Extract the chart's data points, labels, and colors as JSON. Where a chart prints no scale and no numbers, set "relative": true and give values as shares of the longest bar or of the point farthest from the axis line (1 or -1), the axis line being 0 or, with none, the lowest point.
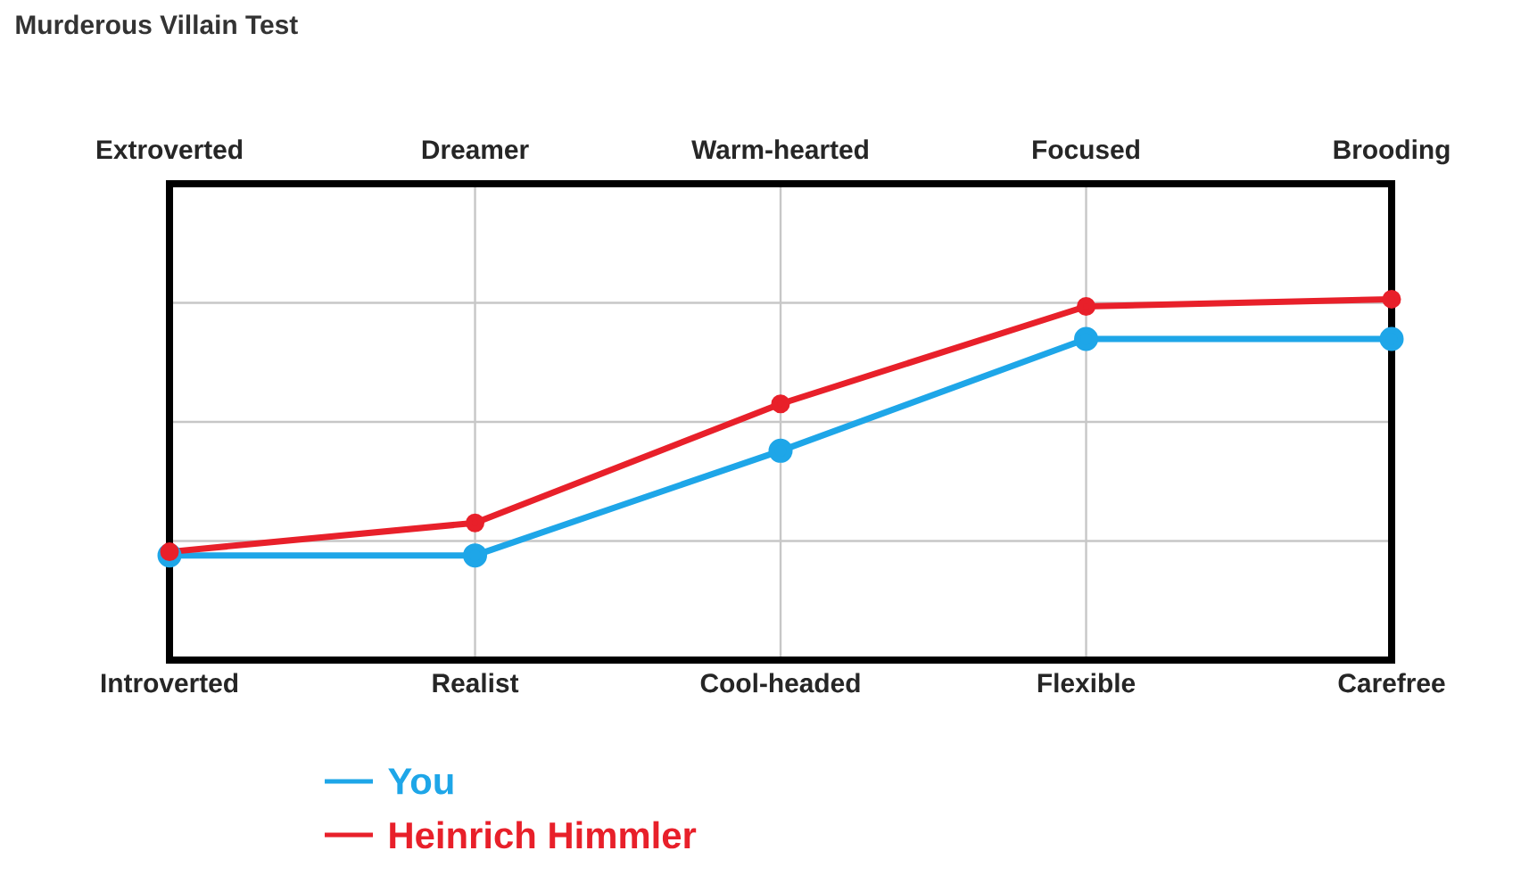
{
  "chart_data": {
    "type": "line",
    "title": "Murderous Villain Test",
    "relative": true,
    "categories": [
      "Introverted",
      "Realist",
      "Cool-headed",
      "Flexible",
      "Carefree"
    ],
    "annotations": [
      "Extroverted",
      "Dreamer",
      "Warm-hearted",
      "Focused",
      "Brooding"
    ],
    "series": [
      {
        "name": "You",
        "color": "#1ea6e8",
        "values": [
          0.29,
          0.29,
          0.58,
          0.89,
          0.89
        ]
      },
      {
        "name": "Heinrich Himmler",
        "color": "#e8202a",
        "values": [
          0.3,
          0.38,
          0.71,
          0.98,
          1.0
        ]
      }
    ],
    "grid": true,
    "legend": "bottom left",
    "marker": "circle",
    "line_style": "solid"
  }
}
